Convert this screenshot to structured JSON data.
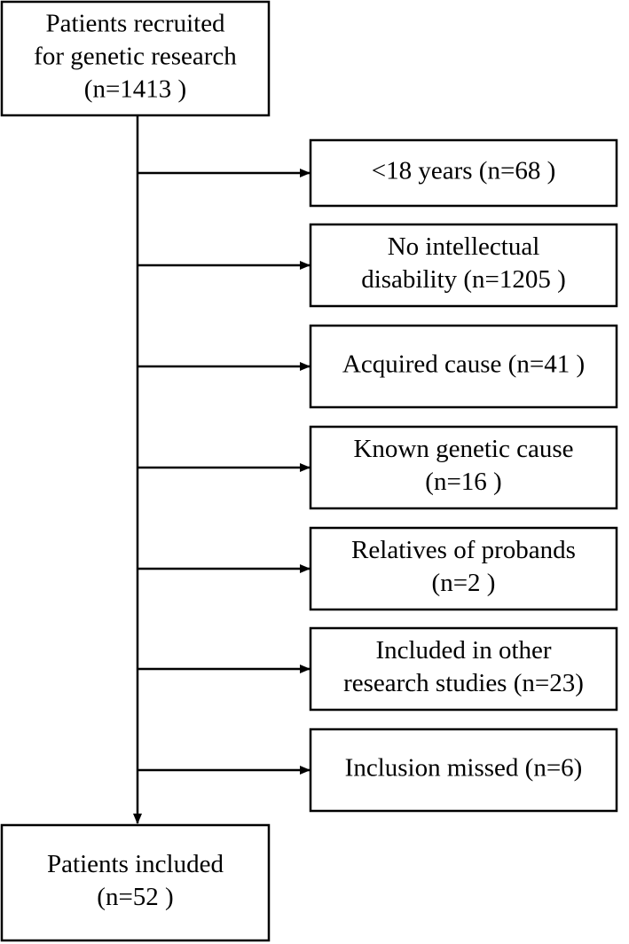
{
  "nodes": [
    {
      "lines": [
        "Patients recruited",
        "for genetic research",
        "(n=1413 )"
      ]
    },
    {
      "lines": [
        "<18 years (n=68 )"
      ]
    },
    {
      "lines": [
        "No intellectual",
        "disability (n=1205 )"
      ]
    },
    {
      "lines": [
        "Acquired cause (n=41 )"
      ]
    },
    {
      "lines": [
        "Known genetic cause",
        "(n=16 )"
      ]
    },
    {
      "lines": [
        "Relatives of probands",
        "(n=2 )"
      ]
    },
    {
      "lines": [
        "Included in other",
        "research studies (n=23)"
      ]
    },
    {
      "lines": [
        "Inclusion missed (n=6)"
      ]
    },
    {
      "lines": [
        "Patients included",
        "(n=52 )"
      ]
    }
  ]
}
